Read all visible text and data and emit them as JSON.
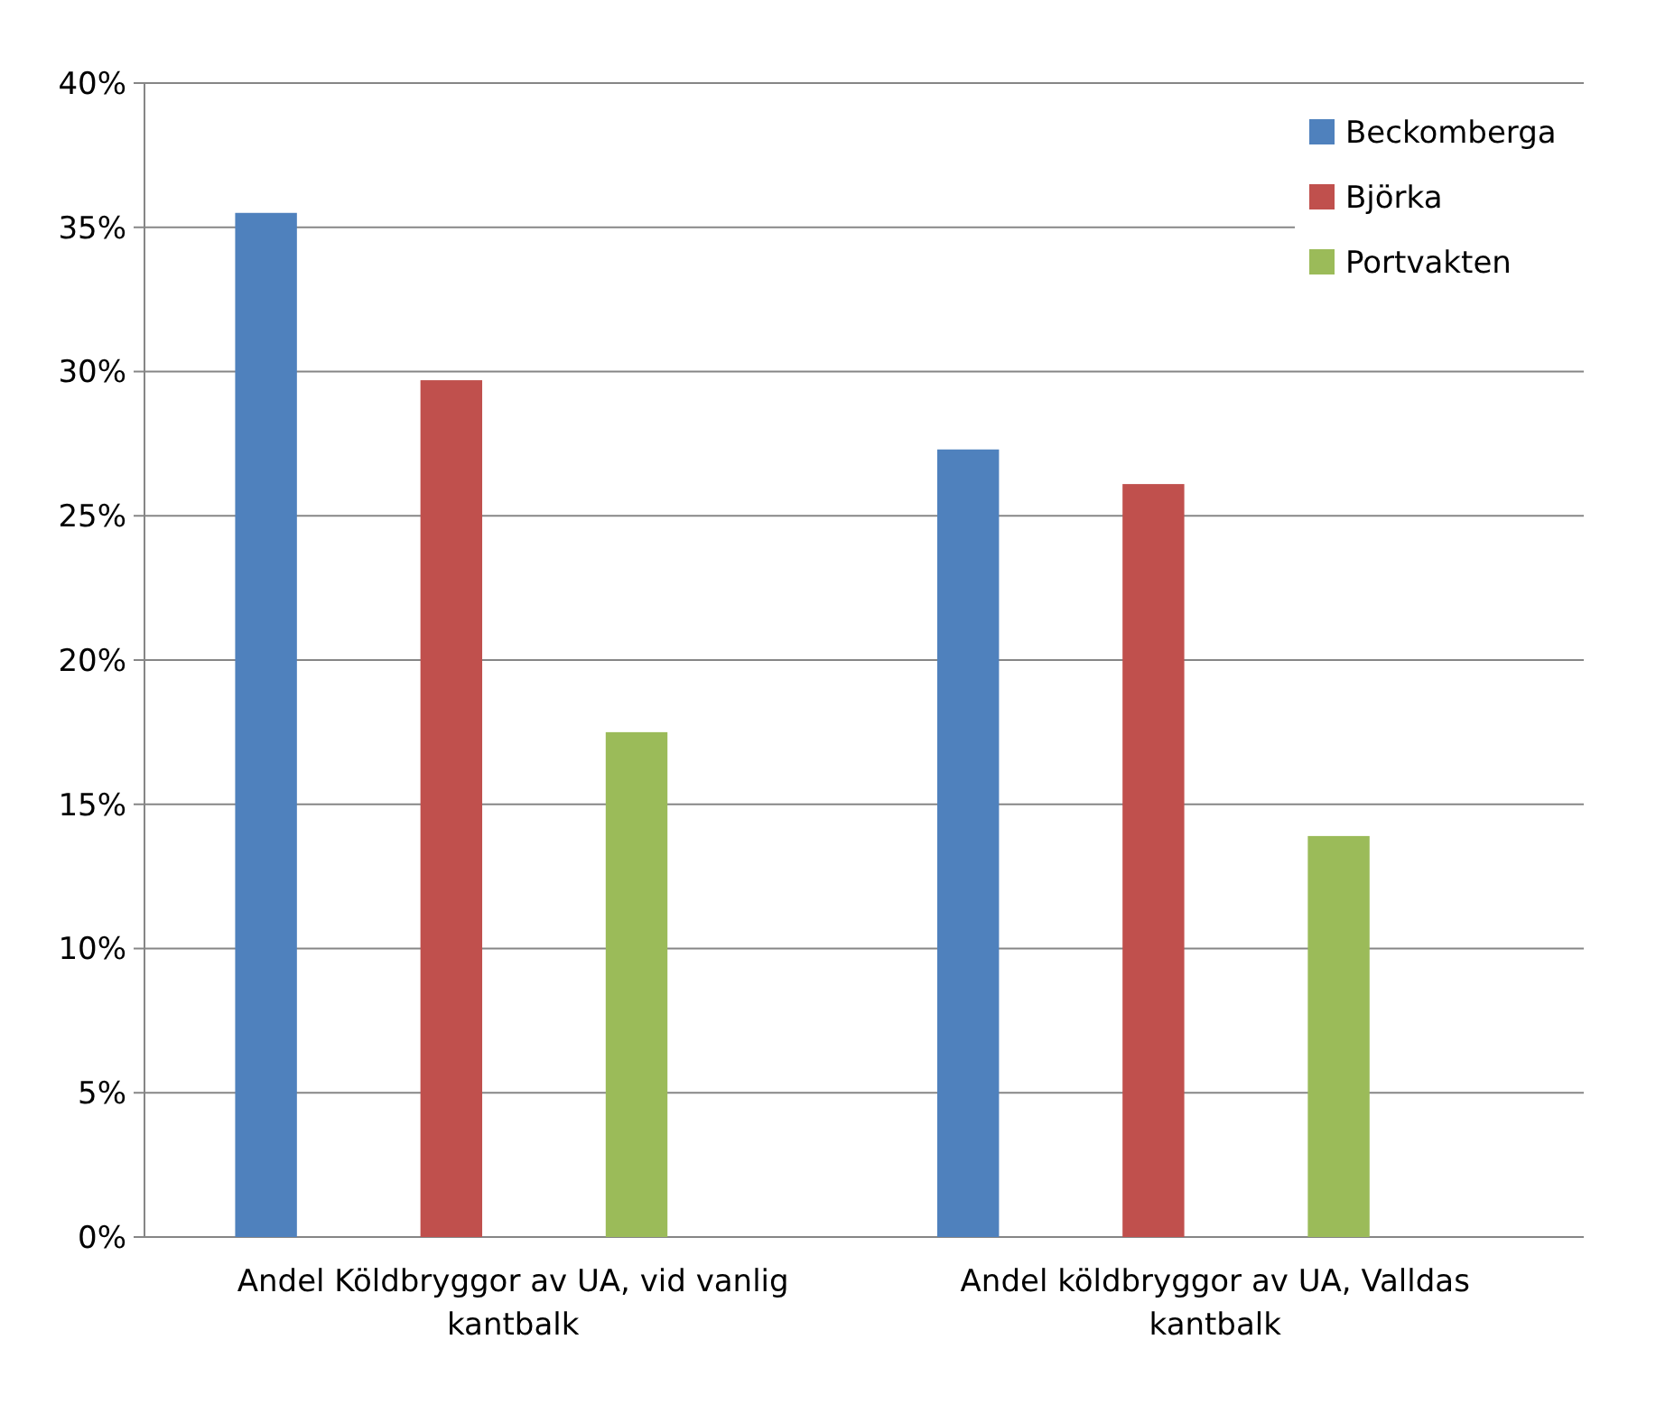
{
  "chart_data": {
    "type": "bar",
    "categories": [
      "Andel Köldbryggor av UA, vid vanlig kantbalk",
      "Andel köldbryggor av UA, Valldas kantbalk"
    ],
    "series": [
      {
        "name": "Beckomberga",
        "color": "#4f81bd",
        "values": [
          35.5,
          27.3
        ]
      },
      {
        "name": "Björka",
        "color": "#c0504d",
        "values": [
          29.7,
          26.1
        ]
      },
      {
        "name": "Portvakten",
        "color": "#9bbb59",
        "values": [
          17.5,
          13.9
        ]
      }
    ],
    "ylim": [
      0,
      40
    ],
    "yticks": [
      {
        "value": 0,
        "label": "0%"
      },
      {
        "value": 5,
        "label": "5%"
      },
      {
        "value": 10,
        "label": "10%"
      },
      {
        "value": 15,
        "label": "15%"
      },
      {
        "value": 20,
        "label": "20%"
      },
      {
        "value": 25,
        "label": "25%"
      },
      {
        "value": 30,
        "label": "30%"
      },
      {
        "value": 35,
        "label": "35%"
      },
      {
        "value": 40,
        "label": "40%"
      }
    ],
    "grid": "y",
    "legend": "top right"
  }
}
